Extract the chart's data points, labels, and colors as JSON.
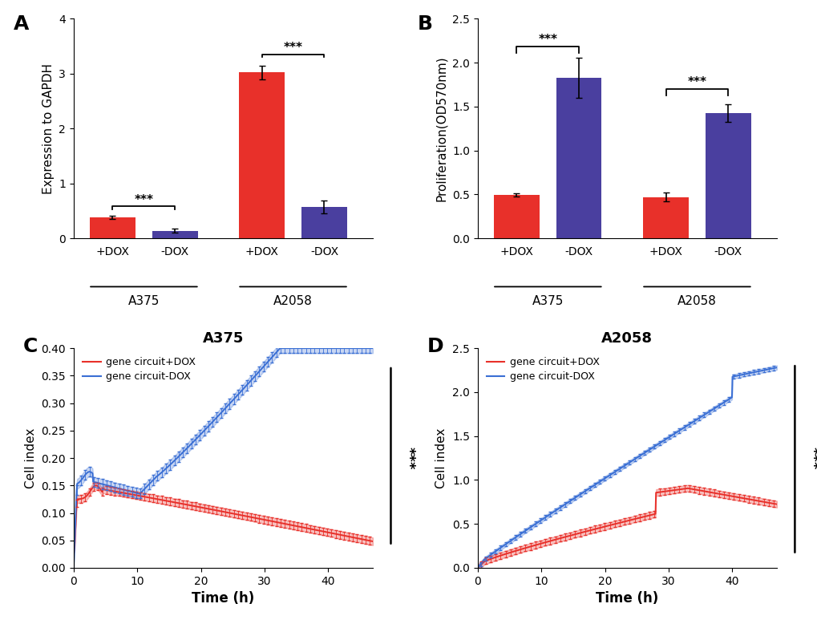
{
  "panel_A": {
    "categories": [
      "+DOX",
      "-DOX",
      "+DOX",
      "-DOX"
    ],
    "values": [
      0.38,
      0.14,
      3.02,
      0.57
    ],
    "errors": [
      0.03,
      0.04,
      0.12,
      0.12
    ],
    "colors": [
      "#E8302A",
      "#4A3F9F",
      "#E8302A",
      "#4A3F9F"
    ],
    "group_labels": [
      "A375",
      "A2058"
    ],
    "ylabel": "Expression to GAPDH",
    "ylim": [
      0,
      4
    ],
    "yticks": [
      0,
      1,
      2,
      3,
      4
    ],
    "sig_A375_y": 0.58,
    "sig_A2058_y": 3.35,
    "sig_text": "***"
  },
  "panel_B": {
    "categories": [
      "+DOX",
      "-DOX",
      "+DOX",
      "-DOX"
    ],
    "values": [
      0.495,
      1.83,
      0.47,
      1.43
    ],
    "errors": [
      0.02,
      0.23,
      0.05,
      0.1
    ],
    "colors": [
      "#E8302A",
      "#4A3F9F",
      "#E8302A",
      "#4A3F9F"
    ],
    "group_labels": [
      "A375",
      "A2058"
    ],
    "ylabel": "Proliferation(OD570nm)",
    "ylim": [
      0,
      2.5
    ],
    "yticks": [
      0.0,
      0.5,
      1.0,
      1.5,
      2.0,
      2.5
    ],
    "sig_A375_y": 2.18,
    "sig_A2058_y": 1.7,
    "sig_text": "***"
  },
  "panel_C": {
    "title": "A375",
    "xlabel": "Time (h)",
    "ylabel": "Cell index",
    "xlim": [
      0,
      47
    ],
    "ylim": [
      0,
      0.4
    ],
    "yticks": [
      0.0,
      0.05,
      0.1,
      0.15,
      0.2,
      0.25,
      0.3,
      0.35,
      0.4
    ],
    "xticks": [
      0.0,
      10.0,
      20.0,
      30.0,
      40.0
    ],
    "legend": [
      "gene circuit+DOX",
      "gene circuit-DOX"
    ],
    "colors": [
      "#E8302A",
      "#3A6FD4"
    ],
    "sig_text": "***"
  },
  "panel_D": {
    "title": "A2058",
    "xlabel": "Time (h)",
    "ylabel": "Cell index",
    "xlim": [
      0,
      47
    ],
    "ylim": [
      0,
      2.5
    ],
    "yticks": [
      0.0,
      0.5,
      1.0,
      1.5,
      2.0,
      2.5
    ],
    "xticks": [
      0.0,
      10.0,
      20.0,
      30.0,
      40.0
    ],
    "legend": [
      "gene circuit+DOX",
      "gene circuit-DOX"
    ],
    "colors": [
      "#E8302A",
      "#3A6FD4"
    ],
    "sig_text": "***"
  },
  "background_color": "#FFFFFF",
  "panel_label_fontsize": 18,
  "axis_label_fontsize": 11,
  "tick_fontsize": 10,
  "bar_width": 0.52
}
